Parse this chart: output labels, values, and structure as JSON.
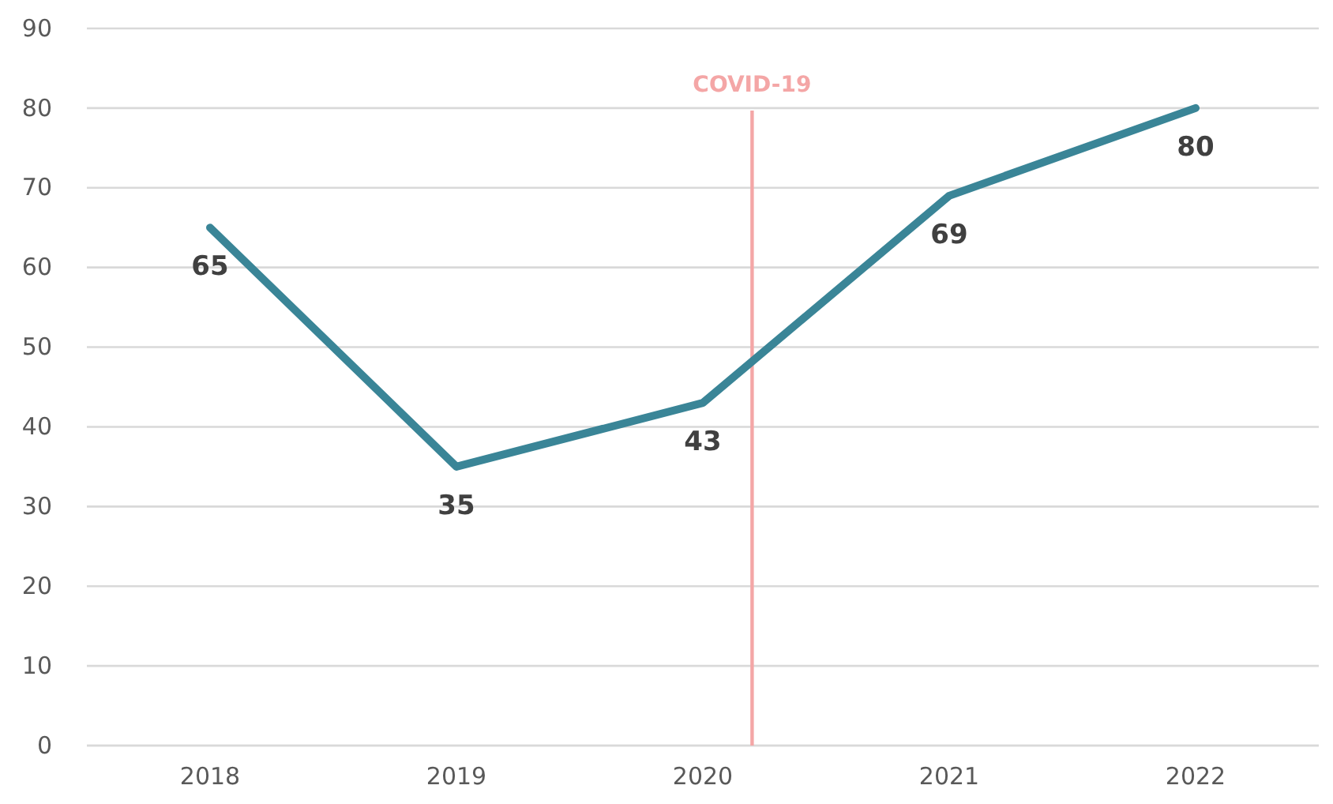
{
  "chart_data": {
    "type": "line",
    "x": [
      2018,
      2019,
      2020,
      2021,
      2022
    ],
    "series": [
      {
        "color": "#3a8597",
        "values": [
          65,
          35,
          43,
          69,
          80
        ]
      }
    ],
    "data_labels": true,
    "xlim": [
      2017.5,
      2022.5
    ],
    "xticks": [
      2018,
      2019,
      2020,
      2021,
      2022
    ],
    "ylim": [
      0,
      90
    ],
    "yticks": [
      0,
      10,
      20,
      30,
      40,
      50,
      60,
      70,
      80,
      90
    ],
    "grid": "y",
    "marker": "none",
    "line_style": "solid",
    "ref_lines": [
      {
        "axis": "x",
        "value": 2020.2,
        "label": "COVID-19",
        "color": "#f4a6a6"
      }
    ]
  }
}
